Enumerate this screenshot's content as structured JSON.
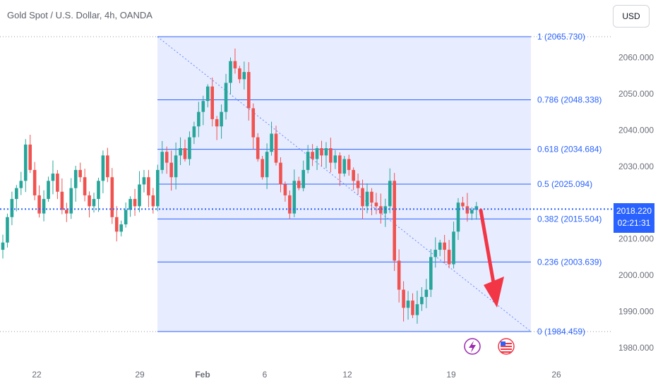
{
  "header": {
    "title": "Gold Spot / U.S. Dollar, 4h, OANDA"
  },
  "currency_button": {
    "label": "USD"
  },
  "last_price": {
    "price": "2018.220",
    "countdown": "02:21:31"
  },
  "colors": {
    "up": "#26a69a",
    "down": "#ef5350",
    "fib": "#2962ff",
    "fib_fill": "#e8ecff",
    "arrow": "#f23645",
    "price_line": "#2962ff"
  },
  "icons": {
    "event_1": "lightning-bolt-icon",
    "event_2": "us-flag-icon"
  },
  "chart_data": {
    "type": "candlestick",
    "title": "Gold Spot / U.S. Dollar, 4h, OANDA",
    "ylim": [
      1978,
      2070
    ],
    "y_ticks": [
      1980,
      1990,
      2000,
      2010,
      2020,
      2030,
      2040,
      2050,
      2060
    ],
    "y_tick_labels": [
      "1980.000",
      "1990.000",
      "2000.000",
      "2010.000",
      "",
      "2030.000",
      "2040.000",
      "2050.000",
      "2060.000"
    ],
    "x_tick_labels": [
      "22",
      "29",
      "Feb",
      "6",
      "12",
      "19",
      "26"
    ],
    "last_price": 2018.22,
    "fibonacci": {
      "levels": [
        {
          "ratio": "1",
          "price": 2065.73,
          "label": "1 (2065.730)"
        },
        {
          "ratio": "0.786",
          "price": 2048.338,
          "label": "0.786 (2048.338)"
        },
        {
          "ratio": "0.618",
          "price": 2034.684,
          "label": "0.618 (2034.684)"
        },
        {
          "ratio": "0.5",
          "price": 2025.094,
          "label": "0.5 (2025.094)"
        },
        {
          "ratio": "0.382",
          "price": 2015.504,
          "label": "0.382 (2015.504)"
        },
        {
          "ratio": "0.236",
          "price": 2003.639,
          "label": "0.236 (2003.639)"
        },
        {
          "ratio": "0",
          "price": 1984.459,
          "label": "0 (1984.459)"
        }
      ]
    },
    "close_path": [
      2009,
      2016,
      2021,
      2024,
      2026,
      2036,
      2029,
      2022,
      2017,
      2021,
      2026,
      2028,
      2023,
      2018,
      2017,
      2024,
      2029,
      2027,
      2022,
      2019,
      2021,
      2026,
      2033,
      2027,
      2016,
      2012,
      2014,
      2018,
      2021,
      2019,
      2025,
      2027,
      2022,
      2019,
      2029,
      2034,
      2031,
      2027,
      2033,
      2035,
      2032,
      2038,
      2041,
      2045,
      2048,
      2052,
      2043,
      2041,
      2045,
      2053,
      2059,
      2057,
      2054,
      2056,
      2046,
      2038,
      2032,
      2027,
      2034,
      2039,
      2031,
      2025,
      2022,
      2017,
      2026,
      2024,
      2029,
      2034,
      2032,
      2035,
      2033,
      2035,
      2031,
      2033,
      2028,
      2032,
      2029,
      2026,
      2024,
      2019,
      2023,
      2020,
      2019,
      2017,
      2019,
      2026,
      2004,
      1996,
      1991,
      1993,
      1989,
      1992,
      1994,
      1996,
      2005,
      2007,
      2009,
      2007,
      2003,
      2012,
      2020,
      2019,
      2017,
      2018,
      2019
    ]
  }
}
